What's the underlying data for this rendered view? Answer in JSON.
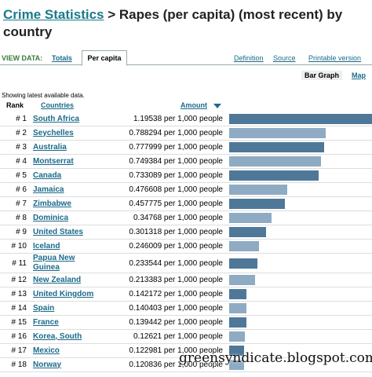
{
  "header": {
    "link": "Crime Statistics",
    "title": " > Rapes (per capita) (most recent) by country"
  },
  "view_bar": {
    "label": "VIEW DATA:",
    "tabs": [
      "Totals",
      "Per capita"
    ],
    "links": [
      "Definition",
      "Source",
      "Printable version"
    ]
  },
  "sub_tabs": [
    "Bar Graph",
    "Map"
  ],
  "note": "Showing latest available data.",
  "table": {
    "columns": [
      "Rank",
      "Countries",
      "Amount"
    ],
    "rows": [
      {
        "rank": "# 1",
        "country": "South Africa",
        "value": 1.19538,
        "unit": "per 1,000 people"
      },
      {
        "rank": "# 2",
        "country": "Seychelles",
        "value": 0.788294,
        "unit": "per 1,000 people"
      },
      {
        "rank": "# 3",
        "country": "Australia",
        "value": 0.777999,
        "unit": "per 1,000 people"
      },
      {
        "rank": "# 4",
        "country": "Montserrat",
        "value": 0.749384,
        "unit": "per 1,000 people"
      },
      {
        "rank": "# 5",
        "country": "Canada",
        "value": 0.733089,
        "unit": "per 1,000 people"
      },
      {
        "rank": "# 6",
        "country": "Jamaica",
        "value": 0.476608,
        "unit": "per 1,000 people"
      },
      {
        "rank": "# 7",
        "country": "Zimbabwe",
        "value": 0.457775,
        "unit": "per 1,000 people"
      },
      {
        "rank": "# 8",
        "country": "Dominica",
        "value": 0.34768,
        "unit": "per 1,000 people"
      },
      {
        "rank": "# 9",
        "country": "United States",
        "value": 0.301318,
        "unit": "per 1,000 people"
      },
      {
        "rank": "# 10",
        "country": "Iceland",
        "value": 0.246009,
        "unit": "per 1,000 people"
      },
      {
        "rank": "# 11",
        "country": "Papua New Guinea",
        "value": 0.233544,
        "unit": "per 1,000 people"
      },
      {
        "rank": "# 12",
        "country": "New Zealand",
        "value": 0.213383,
        "unit": "per 1,000 people"
      },
      {
        "rank": "# 13",
        "country": "United Kingdom",
        "value": 0.142172,
        "unit": "per 1,000 people"
      },
      {
        "rank": "# 14",
        "country": "Spain",
        "value": 0.140403,
        "unit": "per 1,000 people"
      },
      {
        "rank": "# 15",
        "country": "France",
        "value": 0.139442,
        "unit": "per 1,000 people"
      },
      {
        "rank": "# 16",
        "country": "Korea, South",
        "value": 0.12621,
        "unit": "per 1,000 people"
      },
      {
        "rank": "# 17",
        "country": "Mexico",
        "value": 0.122981,
        "unit": "per 1,000 people"
      },
      {
        "rank": "# 18",
        "country": "Norway",
        "value": 0.120836,
        "unit": "per 1,000 people"
      }
    ]
  },
  "watermark": "greensyndicate.blogspot.com"
}
